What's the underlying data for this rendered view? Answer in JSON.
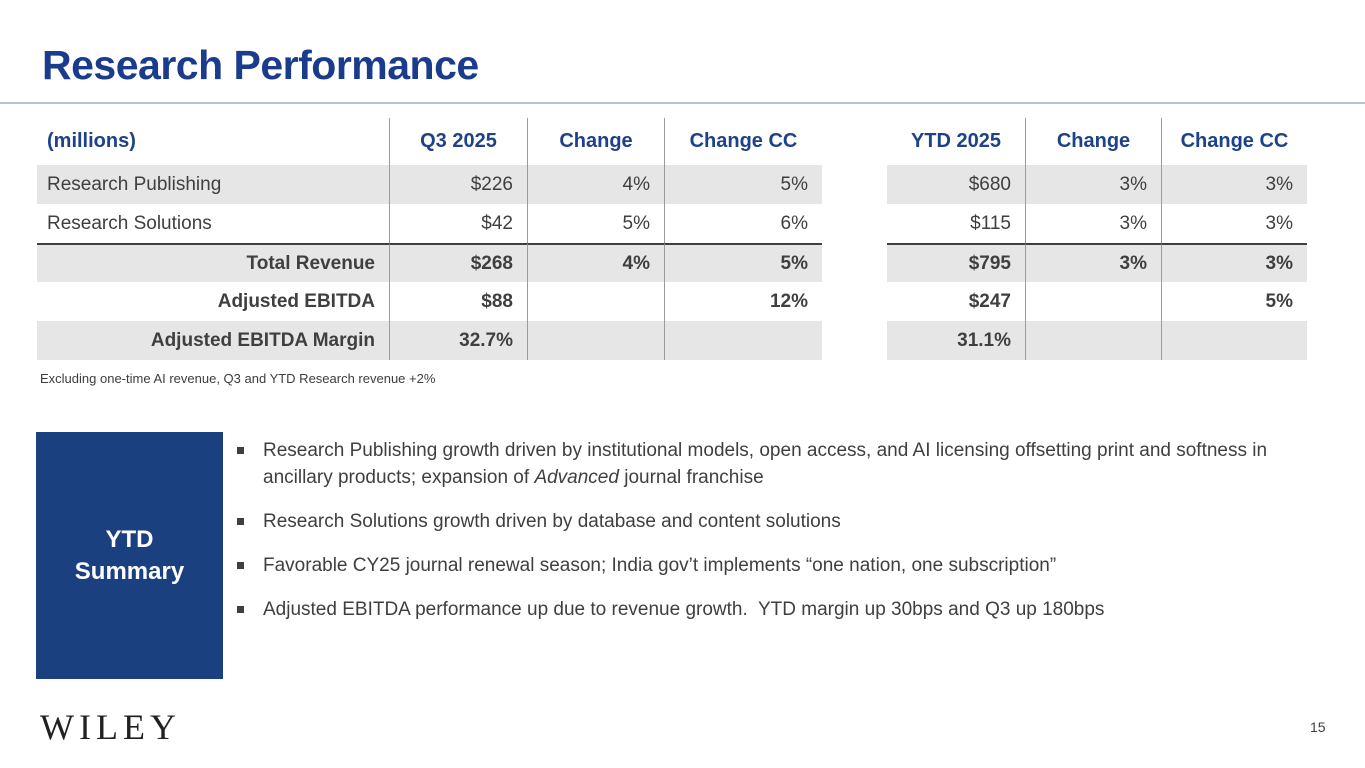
{
  "slide": {
    "title": "Research Performance",
    "footnote": "Excluding one-time AI revenue, Q3 and YTD Research revenue +2%",
    "logo": "WILEY",
    "page_number": "15"
  },
  "colors": {
    "title_blue": "#1b3c8c",
    "header_blue": "#1d4289",
    "box_blue": "#1b4080",
    "shade_gray": "#e6e6e6",
    "divider_gray": "#9b9b9b",
    "dark_line": "#3f3f3f",
    "rule_gray": "#b7c0d4",
    "text_dark": "#3f3f3f"
  },
  "tables": {
    "q3": {
      "headers": [
        "(millions)",
        "Q3 2025",
        "Change",
        "Change CC"
      ],
      "rows": [
        {
          "label": "Research Publishing",
          "values": [
            "$226",
            "4%",
            "5%"
          ]
        },
        {
          "label": "Research Solutions",
          "values": [
            "$42",
            "5%",
            "6%"
          ]
        },
        {
          "label": "Total Revenue",
          "values": [
            "$268",
            "4%",
            "5%"
          ]
        },
        {
          "label": "Adjusted EBITDA",
          "values": [
            "$88",
            "",
            "12%"
          ]
        },
        {
          "label": "Adjusted EBITDA Margin",
          "values": [
            "32.7%",
            "",
            ""
          ]
        }
      ]
    },
    "ytd": {
      "headers": [
        "YTD 2025",
        "Change",
        "Change CC"
      ],
      "rows": [
        {
          "values": [
            "$680",
            "3%",
            "3%"
          ]
        },
        {
          "values": [
            "$115",
            "3%",
            "3%"
          ]
        },
        {
          "values": [
            "$795",
            "3%",
            "3%"
          ]
        },
        {
          "values": [
            "$247",
            "",
            "5%"
          ]
        },
        {
          "values": [
            "31.1%",
            "",
            ""
          ]
        }
      ]
    }
  },
  "summary": {
    "label_line1": "YTD",
    "label_line2": "Summary",
    "bullets": [
      {
        "pre": "Research Publishing growth driven by institutional models, open access, and AI licensing offsetting print and softness in ancillary products; expansion of ",
        "em": "Advanced",
        "post": " journal franchise"
      },
      {
        "text": "Research Solutions growth driven by database and content solutions"
      },
      {
        "text": "Favorable CY25 journal renewal season; India gov’t implements “one nation, one subscription”"
      },
      {
        "text": "Adjusted EBITDA performance up due to revenue growth.  YTD margin up 30bps and Q3 up 180bps"
      }
    ]
  }
}
